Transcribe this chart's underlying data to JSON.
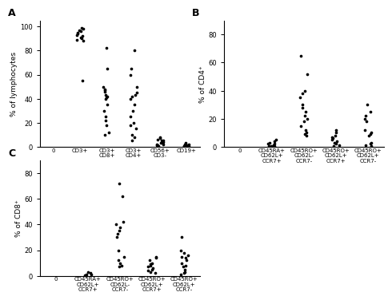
{
  "panel_A": {
    "title": "A",
    "ylabel": "% of lymphocytes",
    "categories": [
      "0",
      "CD3+",
      "CD3+\nCD8+",
      "CD3+\nCD4+",
      "CD56+\nCD3-",
      "CD19+"
    ],
    "data": {
      "CD3+": [
        97,
        98,
        99,
        96,
        95,
        94,
        93,
        92,
        91,
        90,
        89,
        88,
        55
      ],
      "CD3+\nCD8+": [
        48,
        47,
        46,
        43,
        42,
        41,
        40,
        35,
        30,
        25,
        22,
        18,
        12,
        10,
        82,
        65,
        50
      ],
      "CD3+\nCD4+": [
        80,
        65,
        60,
        50,
        45,
        43,
        42,
        40,
        35,
        30,
        25,
        20,
        18,
        15,
        10,
        8,
        5
      ],
      "CD56+\nCD3-": [
        8,
        7,
        6,
        5,
        5,
        4,
        3,
        3,
        2,
        2,
        1,
        1,
        0.5
      ],
      "CD19+": [
        3,
        2,
        2,
        1,
        1,
        1,
        0.5,
        0.5,
        0.3
      ]
    },
    "ylim": [
      0,
      105
    ],
    "yticks": [
      0,
      20,
      40,
      60,
      80,
      100
    ]
  },
  "panel_B": {
    "title": "B",
    "ylabel": "% of CD4⁺",
    "categories": [
      "0",
      "CD45RA+\nCD62L+\nCCR7+",
      "CD45RO+\nCD62L-\nCCR7-",
      "CD45RO+\nCD62L+\nCCR7+",
      "CD45RO+\nCD62L+\nCCR7-"
    ],
    "data": {
      "CD45RA+\nCD62L+\nCCR7+": [
        5,
        4,
        3,
        2,
        2,
        1,
        1,
        0.5,
        0.5,
        0.3
      ],
      "CD45RO+\nCD62L-\nCCR7-": [
        65,
        52,
        40,
        38,
        35,
        30,
        28,
        25,
        22,
        20,
        18,
        15,
        12,
        10,
        9,
        8
      ],
      "CD45RO+\nCD62L+\nCCR7+": [
        12,
        10,
        8,
        7,
        6,
        5,
        4,
        3,
        2,
        1,
        0.5
      ],
      "CD45RO+\nCD62L+\nCCR7-": [
        30,
        25,
        22,
        20,
        18,
        12,
        10,
        9,
        8,
        3,
        2,
        1,
        0.5
      ]
    },
    "ylim": [
      0,
      90
    ],
    "yticks": [
      0,
      20,
      40,
      60,
      80
    ]
  },
  "panel_C": {
    "title": "C",
    "ylabel": "% of CD8⁺",
    "categories": [
      "0",
      "CD45RA+\nCD62L+\nCCR7+",
      "CD45RO+\nCD62L-\nCCR7-",
      "CD45RO+\nCD62L+\nCCR7+",
      "CD45RO+\nCD62L+\nCCR7-"
    ],
    "data": {
      "CD45RA+\nCD62L+\nCCR7+": [
        3,
        2,
        1,
        1,
        0.5,
        0.3
      ],
      "CD45RO+\nCD62L-\nCCR7-": [
        72,
        62,
        42,
        40,
        38,
        35,
        33,
        30,
        20,
        15,
        12,
        10,
        8,
        7
      ],
      "CD45RO+\nCD62L+\nCCR7+": [
        15,
        14,
        12,
        10,
        9,
        8,
        7,
        6,
        5,
        4,
        3,
        2
      ],
      "CD45RO+\nCD62L+\nCCR7-": [
        30,
        20,
        18,
        16,
        15,
        14,
        12,
        10,
        8,
        7,
        5,
        3,
        2,
        1
      ]
    },
    "ylim": [
      0,
      90
    ],
    "yticks": [
      0,
      20,
      40,
      60,
      80
    ]
  }
}
